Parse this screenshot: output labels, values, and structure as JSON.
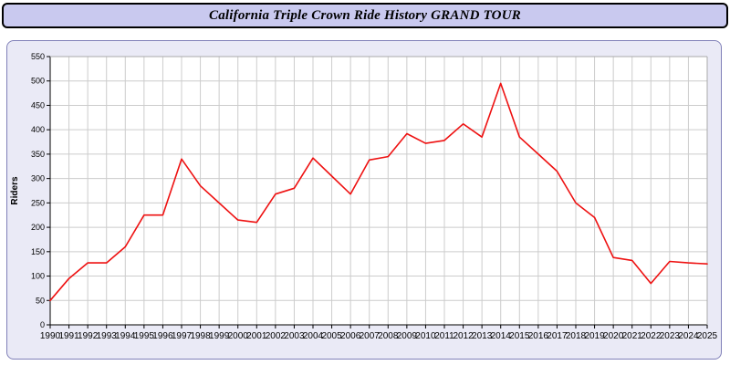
{
  "header": {
    "title": "California Triple Crown Ride History GRAND TOUR"
  },
  "colors": {
    "line": "#ee1111",
    "header_bg": "#c9c9ef",
    "panel_bg": "#eaeaf6",
    "plot_bg": "#ffffff",
    "grid": "#cccccc",
    "axis": "#000000"
  },
  "chart_data": {
    "type": "line",
    "title": "California Triple Crown Ride History GRAND TOUR",
    "xlabel": "",
    "ylabel": "Riders",
    "ylim": [
      0,
      550
    ],
    "ytick_step": 50,
    "grid": true,
    "legend": "none",
    "x": [
      1990,
      1991,
      1992,
      1993,
      1994,
      1995,
      1996,
      1997,
      1998,
      1999,
      2000,
      2001,
      2002,
      2003,
      2004,
      2005,
      2006,
      2007,
      2008,
      2009,
      2010,
      2011,
      2012,
      2013,
      2014,
      2015,
      2016,
      2017,
      2018,
      2019,
      2020,
      2021,
      2022,
      2023,
      2024,
      2025
    ],
    "series": [
      {
        "name": "Riders",
        "values": [
          50,
          95,
          127,
          127,
          160,
          225,
          225,
          340,
          285,
          250,
          215,
          210,
          268,
          280,
          342,
          305,
          268,
          338,
          345,
          392,
          372,
          378,
          412,
          385,
          495,
          385,
          350,
          315,
          250,
          220,
          138,
          132,
          85,
          130,
          127,
          125
        ]
      }
    ]
  }
}
